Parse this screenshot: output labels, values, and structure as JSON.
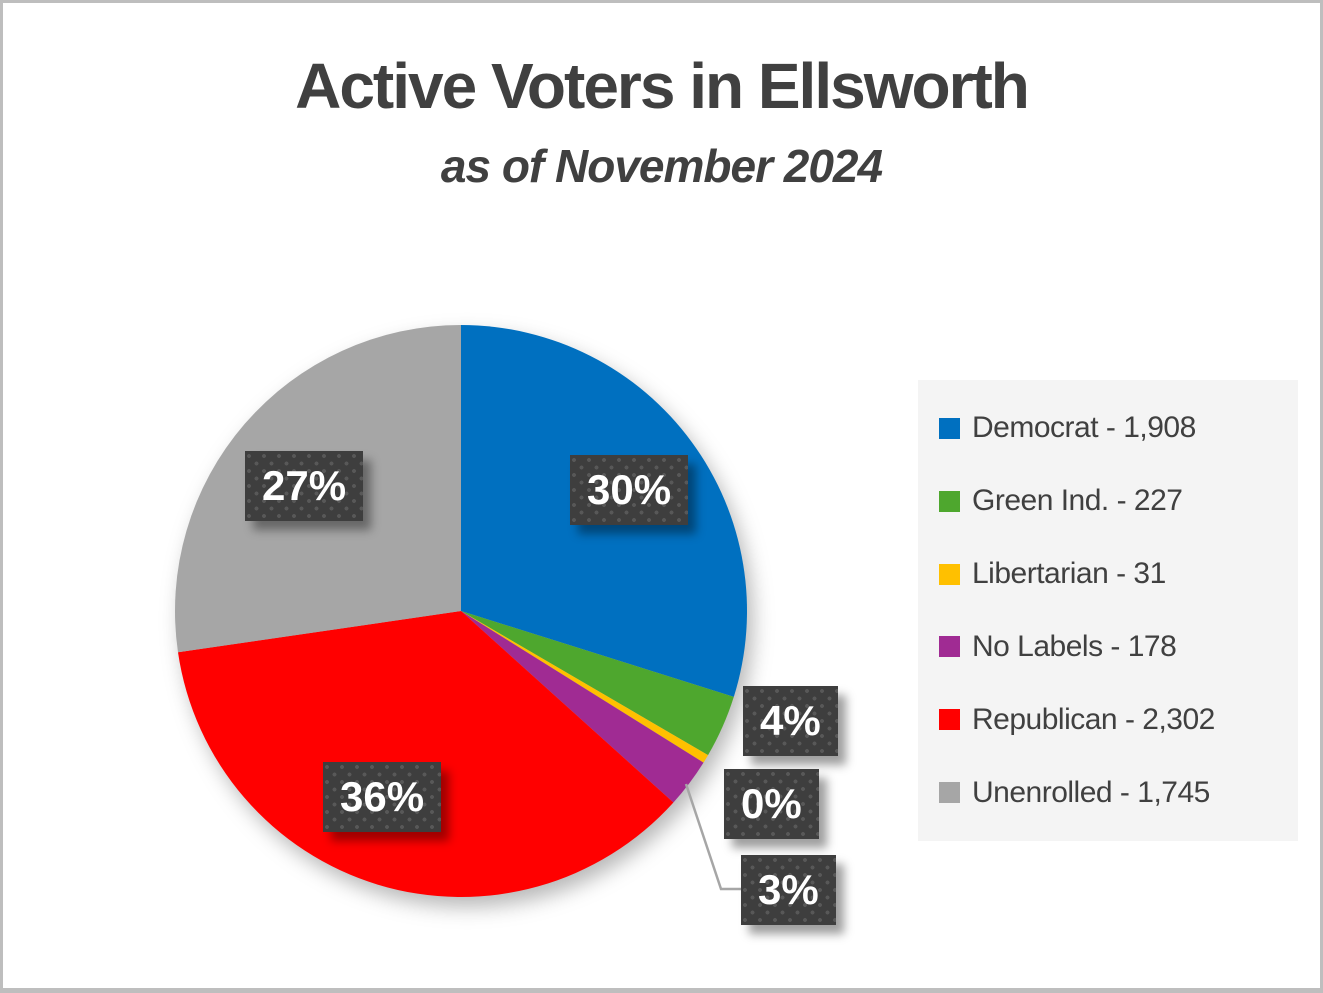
{
  "chart_data": {
    "type": "pie",
    "title": "Active Voters in Ellsworth",
    "subtitle": "as of November 2024",
    "categories": [
      "Democrat",
      "Green Ind.",
      "Libertarian",
      "No Labels",
      "Republican",
      "Unenrolled"
    ],
    "values": [
      1908,
      227,
      31,
      178,
      2302,
      1745
    ],
    "percent_labels": [
      "30%",
      "4%",
      "0%",
      "3%",
      "36%",
      "27%"
    ],
    "colors": [
      "#0070C0",
      "#4EA72E",
      "#FFC000",
      "#A02B93",
      "#FF0000",
      "#A6A6A6"
    ],
    "legend_entries": [
      "Democrat - 1,908",
      "Green Ind. - 227",
      "Libertarian - 31",
      "No Labels - 178",
      "Republican - 2,302",
      "Unenrolled - 1,745"
    ],
    "legend_position": "right",
    "start_angle_deg": 0,
    "direction": "clockwise",
    "title_color": "#404040",
    "label_box_color": "#3E3E3E",
    "label_text_color": "#FFFFFF",
    "legend_bg_color": "#F4F4F4",
    "page_border_color": "#BEBEBE"
  }
}
